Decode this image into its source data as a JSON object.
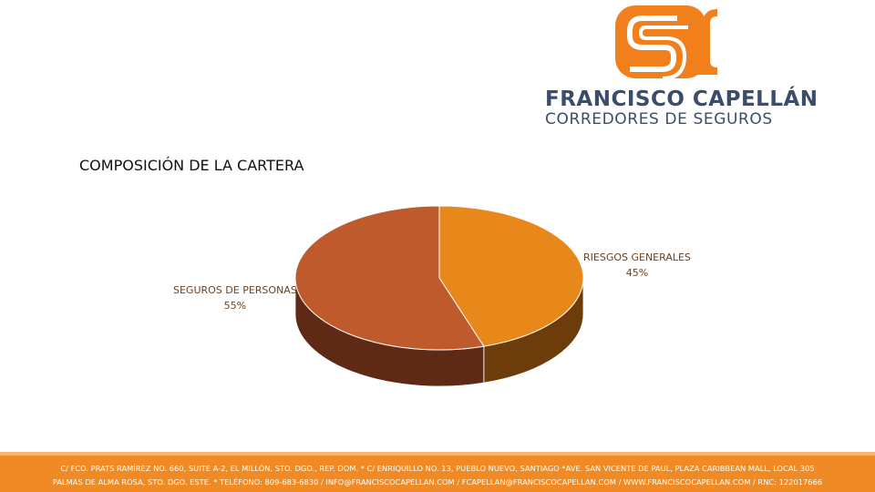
{
  "brand": {
    "name": "FRANCISCO CAPELLÁN",
    "tagline": "CORREDORES DE SEGUROS",
    "primary_color": "#f07f1c",
    "text_color": "#3a4d6b"
  },
  "chart_data": {
    "type": "pie",
    "title": "COMPOSICIÓN DE LA CARTERA",
    "three_d": true,
    "slices": [
      {
        "label": "RIESGOS GENERALES",
        "value": 45,
        "display": "45%",
        "color": "#e8871a",
        "side_color": "#6d3c0b"
      },
      {
        "label": "SEGUROS DE PERSONAS",
        "value": 55,
        "display": "55%",
        "color": "#bf5a2d",
        "side_color": "#5e2a16"
      }
    ]
  },
  "footer": {
    "line1": "C/ FCO. PRATS RAMÍREZ NO. 660, SUITE A-2, EL MILLÓN, STO. DGO., REP. DOM. * C/ ENRIQUILLO NO. 13, PUEBLO NUEVO, SANTIAGO *AVE. SAN VICENTE DE PAUL, PLAZA CARIBBEAN MALL, LOCAL 305",
    "line2": "PALMAS DE ALMA ROSA, STO. DGO. ESTE. * TELÉFONO: 809-683-6830 / INFO@FRANCISCOCAPELLAN.COM / FCAPELLAN@FRANCISCOCAPELLAN.COM / WWW.FRANCISCOCAPELLAN.COM / RNC: 122017666"
  }
}
